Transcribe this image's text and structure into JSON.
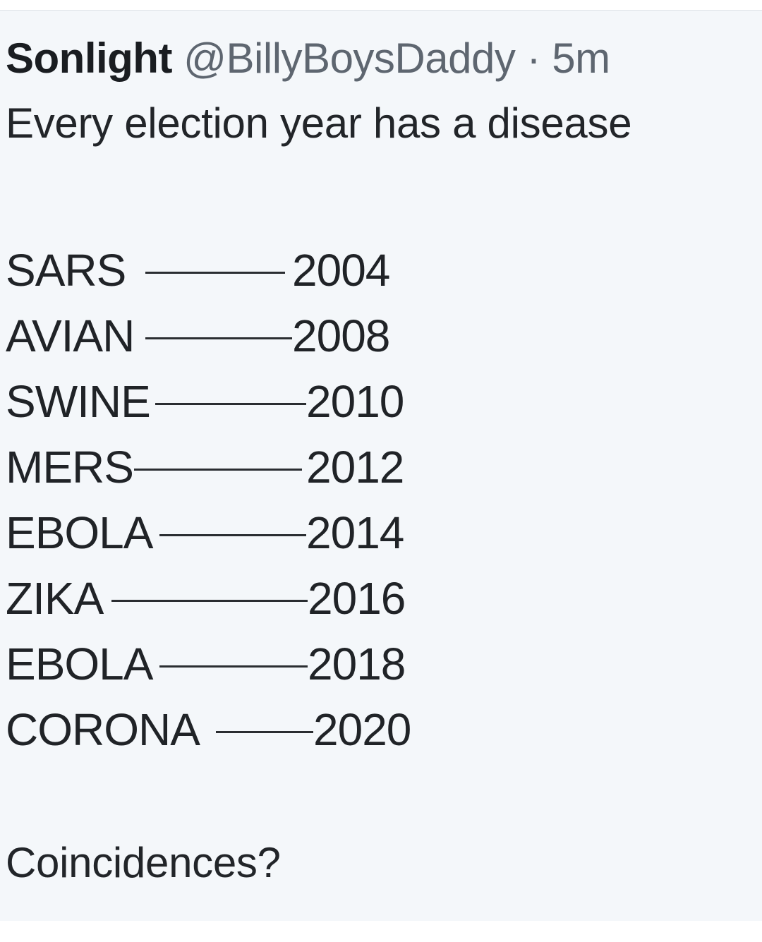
{
  "tweet": {
    "author_name": "Sonlight",
    "handle": "@BillyBoysDaddy",
    "separator": "·",
    "time": "5m",
    "intro": "Every election year has a disease",
    "items": [
      {
        "disease": "SARS",
        "connector": "———",
        "year": "2004"
      },
      {
        "disease": "AVIAN",
        "connector": "———",
        "year": "2008"
      },
      {
        "disease": "SWINE",
        "connector": "———",
        "year": "2010"
      },
      {
        "disease": "MERS",
        "connector": "———-",
        "year": "2012"
      },
      {
        "disease": "EBOLA",
        "connector": "———",
        "year": "2014"
      },
      {
        "disease": "ZIKA",
        "connector": "————",
        "year": "2016"
      },
      {
        "disease": "EBOLA",
        "connector": "———",
        "year": "2018"
      },
      {
        "disease": "CORONA",
        "connector": "——",
        "year": "2020"
      }
    ],
    "closing": "Coincidences?"
  }
}
